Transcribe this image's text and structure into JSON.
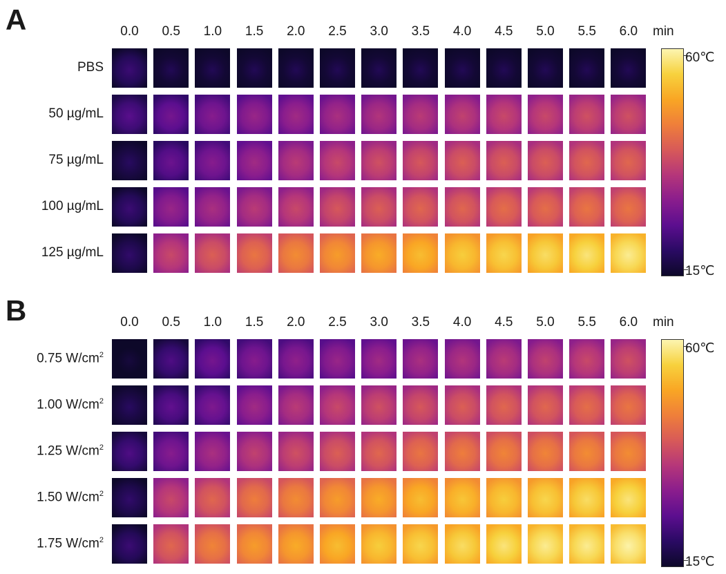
{
  "chart_data": [
    {
      "type": "heatmap",
      "panel": "A",
      "x": [
        "0.0",
        "0.5",
        "1.0",
        "1.5",
        "2.0",
        "2.5",
        "3.0",
        "3.5",
        "4.0",
        "4.5",
        "5.0",
        "5.5",
        "6.0"
      ],
      "x_unit": "min",
      "rows": [
        {
          "label": "PBS",
          "sup": "",
          "values": [
            19,
            16,
            16,
            16,
            16,
            16,
            16,
            16,
            16,
            16,
            16,
            16,
            16
          ]
        },
        {
          "label": "50 µg/mL",
          "sup": "",
          "values": [
            22,
            25,
            27,
            29,
            30,
            31,
            32,
            33,
            34,
            35,
            35,
            36,
            36
          ]
        },
        {
          "label": "75 µg/mL",
          "sup": "",
          "values": [
            17,
            24,
            27,
            30,
            33,
            35,
            36,
            37,
            38,
            38,
            38,
            39,
            39
          ]
        },
        {
          "label": "100 µg/mL",
          "sup": "",
          "values": [
            19,
            29,
            31,
            33,
            35,
            37,
            38,
            39,
            39,
            40,
            40,
            41,
            41
          ]
        },
        {
          "label": "125 µg/mL",
          "sup": "",
          "values": [
            18,
            35,
            38,
            41,
            44,
            46,
            48,
            50,
            52,
            53,
            54,
            55,
            56
          ]
        }
      ],
      "colorbar": {
        "min": 15,
        "max": 60,
        "min_label": "15℃",
        "max_label": "60℃"
      }
    },
    {
      "type": "heatmap",
      "panel": "B",
      "x": [
        "0.0",
        "0.5",
        "1.0",
        "1.5",
        "2.0",
        "2.5",
        "3.0",
        "3.5",
        "4.0",
        "4.5",
        "5.0",
        "5.5",
        "6.0"
      ],
      "x_unit": "min",
      "rows": [
        {
          "label": "0.75 W/cm",
          "sup": "2",
          "values": [
            14,
            21,
            25,
            27,
            28,
            29,
            30,
            31,
            32,
            33,
            34,
            35,
            36
          ]
        },
        {
          "label": "1.00 W/cm",
          "sup": "2",
          "values": [
            17,
            23,
            26,
            30,
            33,
            35,
            36,
            37,
            38,
            39,
            39,
            40,
            41
          ]
        },
        {
          "label": "1.25 W/cm",
          "sup": "2",
          "values": [
            21,
            27,
            31,
            34,
            36,
            38,
            39,
            41,
            42,
            43,
            43,
            44,
            44
          ]
        },
        {
          "label": "1.50 W/cm",
          "sup": "2",
          "values": [
            18,
            35,
            39,
            42,
            44,
            46,
            48,
            50,
            51,
            52,
            53,
            54,
            55
          ]
        },
        {
          "label": "1.75 W/cm",
          "sup": "2",
          "values": [
            19,
            39,
            43,
            46,
            48,
            50,
            52,
            53,
            54,
            55,
            56,
            56,
            57
          ]
        }
      ],
      "colorbar": {
        "min": 15,
        "max": 60,
        "min_label": "15℃",
        "max_label": "60℃"
      }
    }
  ],
  "colormap": [
    "#0d0829",
    "#2a0a64",
    "#5c0e8f",
    "#8a1d8d",
    "#b5367a",
    "#d85a58",
    "#ef7f3a",
    "#f9a624",
    "#f7d13d",
    "#fcf5b0"
  ]
}
